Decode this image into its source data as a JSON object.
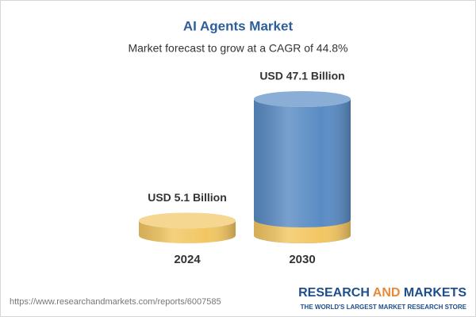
{
  "chart_data": {
    "type": "cylinder",
    "title": "AI Agents Market",
    "subtitle": "Market forecast to grow at a CAGR of 44.8%",
    "categories": [
      "2024",
      "2030"
    ],
    "values": [
      5.1,
      47.1
    ],
    "value_labels": [
      "USD 5.1 Billion",
      "USD 47.1 Billion"
    ],
    "colors": [
      "#f2c662",
      "#5a8cc4"
    ],
    "base_color": "#f2c662"
  },
  "footer": {
    "url": "https://www.researchandmarkets.com/reports/6007585",
    "brand": [
      "RESEARCH",
      "AND",
      "MARKETS"
    ],
    "tagline": "THE WORLD'S LARGEST MARKET RESEARCH STORE"
  }
}
